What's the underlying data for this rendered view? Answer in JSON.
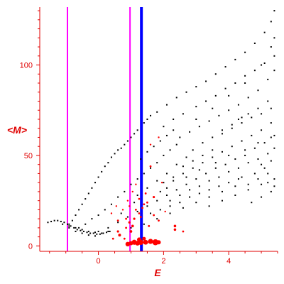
{
  "chart_data": {
    "type": "scatter",
    "title": "",
    "xlabel": "E",
    "ylabel": "<M>",
    "xlim": [
      -1.8,
      5.5
    ],
    "ylim": [
      -3,
      132
    ],
    "xticks": [
      0,
      2,
      4
    ],
    "yticks": [
      0,
      50,
      100
    ],
    "grid": false,
    "colors": {
      "axis": "#e00000",
      "points": "#000000",
      "highlight": "#ff0000",
      "vline_magenta": "#ff00ff",
      "vline_blue": "#0000ff"
    },
    "vertical_lines": [
      {
        "x": -0.95,
        "color": "#ff00ff"
      },
      {
        "x": 0.97,
        "color": "#ff00ff"
      },
      {
        "x": 1.32,
        "color": "#0000ff"
      }
    ],
    "series": [
      {
        "points": [
          [
            -1.55,
            13
          ],
          [
            -1.45,
            13.5
          ],
          [
            -1.35,
            14
          ],
          [
            -1.25,
            14
          ],
          [
            -1.15,
            13.5
          ],
          [
            -1.05,
            13
          ],
          [
            -0.95,
            12
          ],
          [
            -0.85,
            11
          ],
          [
            -0.75,
            10
          ],
          [
            -0.65,
            9
          ],
          [
            -0.55,
            8.5
          ],
          [
            -0.45,
            8
          ],
          [
            -0.35,
            7.5
          ],
          [
            -0.25,
            7
          ],
          [
            -0.15,
            7
          ],
          [
            -0.05,
            6.5
          ],
          [
            0.05,
            6.5
          ],
          [
            0.15,
            7
          ],
          [
            0.25,
            7.5
          ],
          [
            0.35,
            8
          ],
          [
            -1.1,
            12
          ],
          [
            -0.9,
            11
          ],
          [
            -0.7,
            10
          ],
          [
            -0.5,
            9
          ],
          [
            -0.3,
            8
          ],
          [
            -0.1,
            7.5
          ],
          [
            0.1,
            7
          ],
          [
            0.3,
            8
          ],
          [
            -0.9,
            10
          ],
          [
            -0.7,
            8
          ],
          [
            -0.5,
            7
          ],
          [
            -0.3,
            6
          ],
          [
            -0.1,
            5.5
          ],
          [
            -0.9,
            12
          ],
          [
            -0.8,
            14
          ],
          [
            -0.7,
            17
          ],
          [
            -0.6,
            20
          ],
          [
            -0.5,
            23
          ],
          [
            -0.4,
            26
          ],
          [
            -0.3,
            29
          ],
          [
            -0.2,
            32
          ],
          [
            -0.1,
            35
          ],
          [
            0.0,
            38
          ],
          [
            0.1,
            41
          ],
          [
            0.2,
            44
          ],
          [
            0.3,
            46
          ],
          [
            0.4,
            49
          ],
          [
            0.5,
            51
          ],
          [
            0.6,
            53
          ],
          [
            0.7,
            54
          ],
          [
            0.8,
            56
          ],
          [
            0.9,
            58
          ],
          [
            1.0,
            60
          ],
          [
            1.1,
            62
          ],
          [
            1.2,
            64
          ],
          [
            1.4,
            68
          ],
          [
            1.6,
            72
          ],
          [
            -0.6,
            10
          ],
          [
            -0.4,
            12
          ],
          [
            -0.2,
            15
          ],
          [
            0.0,
            17
          ],
          [
            0.2,
            20
          ],
          [
            0.4,
            23
          ],
          [
            0.6,
            27
          ],
          [
            0.8,
            30
          ],
          [
            1.0,
            34
          ],
          [
            1.2,
            37
          ],
          [
            1.4,
            40
          ],
          [
            1.6,
            43
          ],
          [
            1.8,
            46
          ],
          [
            2.0,
            50
          ],
          [
            2.2,
            53
          ],
          [
            2.4,
            56
          ],
          [
            0.0,
            8
          ],
          [
            0.3,
            10
          ],
          [
            0.6,
            13
          ],
          [
            0.9,
            16
          ],
          [
            1.2,
            19
          ],
          [
            1.5,
            22
          ],
          [
            1.8,
            25
          ],
          [
            2.1,
            28
          ],
          [
            2.4,
            31
          ],
          [
            2.7,
            34
          ],
          [
            3.0,
            37
          ],
          [
            3.3,
            40
          ],
          [
            3.6,
            43
          ],
          [
            1.0,
            10
          ],
          [
            1.4,
            12
          ],
          [
            1.8,
            15
          ],
          [
            2.2,
            18
          ],
          [
            2.6,
            21
          ],
          [
            3.0,
            24
          ],
          [
            3.4,
            27
          ],
          [
            3.8,
            30
          ],
          [
            4.2,
            33
          ],
          [
            1.5,
            70
          ],
          [
            1.8,
            74
          ],
          [
            2.1,
            78
          ],
          [
            2.4,
            82
          ],
          [
            2.7,
            85
          ],
          [
            3.0,
            88
          ],
          [
            3.3,
            91
          ],
          [
            3.6,
            95
          ],
          [
            3.9,
            99
          ],
          [
            4.2,
            103
          ],
          [
            4.5,
            107
          ],
          [
            4.8,
            112
          ],
          [
            5.1,
            118
          ],
          [
            5.3,
            124
          ],
          [
            5.4,
            130
          ],
          [
            2.5,
            60
          ],
          [
            2.8,
            63
          ],
          [
            3.1,
            66
          ],
          [
            3.4,
            69
          ],
          [
            3.7,
            72
          ],
          [
            4.0,
            75
          ],
          [
            4.3,
            78
          ],
          [
            4.6,
            82
          ],
          [
            4.9,
            86
          ],
          [
            5.2,
            92
          ],
          [
            5.4,
            97
          ],
          [
            3.0,
            70
          ],
          [
            3.5,
            76
          ],
          [
            4.0,
            83
          ],
          [
            4.5,
            90
          ],
          [
            5.0,
            100
          ],
          [
            5.3,
            110
          ],
          [
            5.4,
            115
          ],
          [
            2.6,
            40
          ],
          [
            2.9,
            43
          ],
          [
            3.2,
            46
          ],
          [
            3.5,
            49
          ],
          [
            3.8,
            52
          ],
          [
            4.1,
            55
          ],
          [
            4.4,
            58
          ],
          [
            4.7,
            61
          ],
          [
            5.0,
            64
          ],
          [
            5.3,
            68
          ],
          [
            2.2,
            25
          ],
          [
            2.5,
            28
          ],
          [
            2.8,
            31
          ],
          [
            3.1,
            33
          ],
          [
            3.4,
            36
          ],
          [
            3.7,
            38
          ],
          [
            4.0,
            41
          ],
          [
            4.3,
            43
          ],
          [
            4.6,
            46
          ],
          [
            4.9,
            48
          ],
          [
            5.2,
            51
          ],
          [
            5.4,
            54
          ],
          [
            3.4,
            22
          ],
          [
            3.8,
            25
          ],
          [
            4.2,
            28
          ],
          [
            4.6,
            31
          ],
          [
            5.0,
            34
          ],
          [
            5.4,
            37
          ],
          [
            4.3,
            70
          ],
          [
            4.6,
            73
          ],
          [
            4.9,
            76
          ],
          [
            5.2,
            80
          ],
          [
            3.8,
            62
          ],
          [
            4.1,
            65
          ],
          [
            4.4,
            68
          ],
          [
            4.7,
            71
          ],
          [
            5.0,
            73
          ],
          [
            5.3,
            76
          ],
          [
            2.9,
            53
          ],
          [
            3.2,
            57
          ],
          [
            3.5,
            60
          ],
          [
            3.8,
            64
          ],
          [
            4.1,
            67
          ],
          [
            4.4,
            71
          ],
          [
            2.0,
            35
          ],
          [
            2.3,
            38
          ],
          [
            2.6,
            44
          ],
          [
            2.9,
            47
          ],
          [
            3.2,
            50
          ],
          [
            3.5,
            53
          ],
          [
            1.9,
            30
          ],
          [
            2.1,
            32
          ],
          [
            2.3,
            36
          ],
          [
            2.7,
            38
          ],
          [
            3.1,
            42
          ],
          [
            3.6,
            46
          ],
          [
            4.0,
            50
          ],
          [
            4.5,
            53
          ],
          [
            4.9,
            57
          ],
          [
            5.3,
            60
          ],
          [
            4.7,
            24
          ],
          [
            5.0,
            27
          ],
          [
            5.3,
            30
          ],
          [
            5.4,
            33
          ],
          [
            4.4,
            38
          ],
          [
            4.8,
            40
          ],
          [
            5.1,
            43
          ],
          [
            1.6,
            18
          ],
          [
            1.9,
            20
          ],
          [
            2.2,
            22
          ],
          [
            2.5,
            24
          ],
          [
            2.8,
            27
          ],
          [
            3.1,
            29
          ],
          [
            3.4,
            31
          ],
          [
            3.7,
            33
          ],
          [
            4.0,
            35
          ],
          [
            4.3,
            37
          ],
          [
            1.2,
            28
          ],
          [
            1.5,
            32
          ],
          [
            1.8,
            36
          ],
          [
            2.1,
            40
          ],
          [
            2.4,
            45
          ],
          [
            2.7,
            49
          ],
          [
            0.7,
            18
          ],
          [
            1.1,
            24
          ],
          [
            1.3,
            48
          ],
          [
            1.5,
            52
          ],
          [
            1.7,
            55
          ],
          [
            1.9,
            58
          ],
          [
            2.1,
            61
          ],
          [
            2.3,
            64
          ],
          [
            3.3,
            80
          ],
          [
            3.6,
            83
          ],
          [
            3.9,
            87
          ],
          [
            4.2,
            90
          ],
          [
            4.5,
            94
          ],
          [
            4.8,
            97
          ],
          [
            5.1,
            101
          ],
          [
            5.4,
            105
          ],
          [
            2.0,
            66
          ],
          [
            2.3,
            70
          ],
          [
            2.6,
            73
          ],
          [
            3.0,
            77
          ],
          [
            3.9,
            45
          ],
          [
            4.2,
            48
          ],
          [
            4.5,
            50
          ],
          [
            4.8,
            54
          ],
          [
            5.1,
            57
          ],
          [
            5.4,
            61
          ],
          [
            5.0,
            45
          ],
          [
            5.3,
            47
          ],
          [
            5.2,
            40
          ],
          [
            4.6,
            34
          ],
          [
            4.9,
            37
          ],
          [
            5.2,
            35
          ]
        ]
      },
      {
        "points": [
          [
            0.9,
            1,
            3.2
          ],
          [
            1.0,
            1.5,
            3.0
          ],
          [
            1.1,
            2,
            3.6
          ],
          [
            1.2,
            1.5,
            3.4
          ],
          [
            1.3,
            2,
            3.8
          ],
          [
            1.45,
            2,
            3.4
          ],
          [
            1.6,
            2.5,
            3.6
          ],
          [
            1.75,
            2,
            4.2
          ],
          [
            1.85,
            2,
            3.0
          ],
          [
            1.25,
            3.5,
            3.0
          ],
          [
            1.4,
            4,
            2.6
          ],
          [
            0.6,
            8,
            1.6
          ],
          [
            0.65,
            6,
            2.0
          ],
          [
            0.45,
            4,
            1.4
          ],
          [
            0.85,
            10,
            1.4
          ],
          [
            0.95,
            13,
            1.6
          ],
          [
            1.1,
            15,
            1.6
          ],
          [
            1.25,
            18,
            1.4
          ],
          [
            1.35,
            21,
            1.4
          ],
          [
            1.5,
            24,
            1.4
          ],
          [
            1.7,
            27,
            1.6
          ],
          [
            1.3,
            16,
            1.4
          ],
          [
            0.6,
            14,
            1.4
          ],
          [
            0.75,
            20,
            1.2
          ],
          [
            0.9,
            25,
            1.2
          ],
          [
            1.05,
            30,
            1.2
          ],
          [
            1.4,
            23,
            1.4
          ],
          [
            1.85,
            14,
            1.4
          ],
          [
            2.05,
            19,
            1.2
          ],
          [
            2.35,
            11,
            1.8
          ],
          [
            2.6,
            8,
            1.4
          ],
          [
            0.55,
            22,
            1.2
          ],
          [
            1.15,
            34,
            1.2
          ],
          [
            1.6,
            56,
            1.2
          ],
          [
            1.85,
            60,
            1.2
          ],
          [
            1.6,
            44,
            1.4
          ],
          [
            1.95,
            35,
            1.2
          ],
          [
            0.4,
            18,
            1.2
          ],
          [
            1.0,
            8,
            1.8
          ],
          [
            0.8,
            4,
            1.4
          ],
          [
            2.35,
            9,
            1.8
          ],
          [
            1.55,
            11,
            1.4
          ],
          [
            1.05,
            11,
            1.8
          ],
          [
            1.15,
            20,
            1.4
          ],
          [
            0.85,
            15,
            1.4
          ],
          [
            1.7,
            17,
            1.4
          ],
          [
            1.25,
            26,
            1.4
          ],
          [
            1.45,
            29,
            1.4
          ],
          [
            0.95,
            22,
            1.2
          ]
        ]
      }
    ]
  }
}
